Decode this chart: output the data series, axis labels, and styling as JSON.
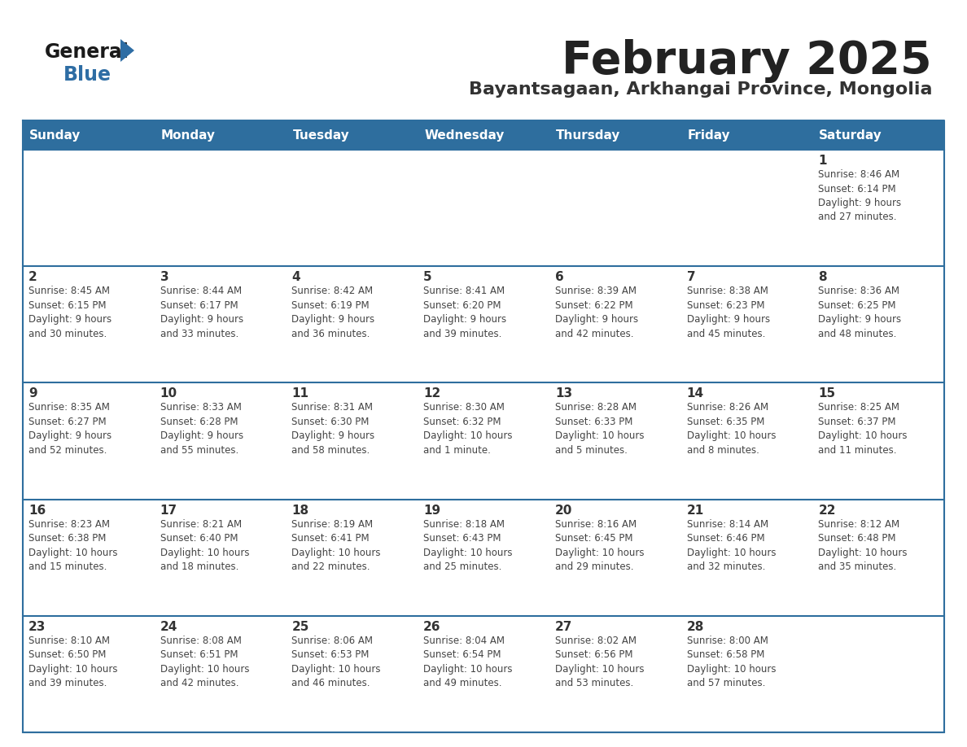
{
  "title": "February 2025",
  "subtitle": "Bayantsagaan, Arkhangai Province, Mongolia",
  "days_of_week": [
    "Sunday",
    "Monday",
    "Tuesday",
    "Wednesday",
    "Thursday",
    "Friday",
    "Saturday"
  ],
  "header_bg": "#2E6E9E",
  "header_text": "#FFFFFF",
  "cell_bg": "#FFFFFF",
  "cell_border": "#2E6E9E",
  "row_separator": "#2E6E9E",
  "text_color": "#444444",
  "day_num_color": "#333333",
  "logo_general_color": "#1a1a1a",
  "logo_blue_color": "#2E6DA4",
  "calendar": [
    [
      null,
      null,
      null,
      null,
      null,
      null,
      {
        "day": 1,
        "sunrise": "8:46 AM",
        "sunset": "6:14 PM",
        "daylight": "9 hours\nand 27 minutes."
      }
    ],
    [
      {
        "day": 2,
        "sunrise": "8:45 AM",
        "sunset": "6:15 PM",
        "daylight": "9 hours\nand 30 minutes."
      },
      {
        "day": 3,
        "sunrise": "8:44 AM",
        "sunset": "6:17 PM",
        "daylight": "9 hours\nand 33 minutes."
      },
      {
        "day": 4,
        "sunrise": "8:42 AM",
        "sunset": "6:19 PM",
        "daylight": "9 hours\nand 36 minutes."
      },
      {
        "day": 5,
        "sunrise": "8:41 AM",
        "sunset": "6:20 PM",
        "daylight": "9 hours\nand 39 minutes."
      },
      {
        "day": 6,
        "sunrise": "8:39 AM",
        "sunset": "6:22 PM",
        "daylight": "9 hours\nand 42 minutes."
      },
      {
        "day": 7,
        "sunrise": "8:38 AM",
        "sunset": "6:23 PM",
        "daylight": "9 hours\nand 45 minutes."
      },
      {
        "day": 8,
        "sunrise": "8:36 AM",
        "sunset": "6:25 PM",
        "daylight": "9 hours\nand 48 minutes."
      }
    ],
    [
      {
        "day": 9,
        "sunrise": "8:35 AM",
        "sunset": "6:27 PM",
        "daylight": "9 hours\nand 52 minutes."
      },
      {
        "day": 10,
        "sunrise": "8:33 AM",
        "sunset": "6:28 PM",
        "daylight": "9 hours\nand 55 minutes."
      },
      {
        "day": 11,
        "sunrise": "8:31 AM",
        "sunset": "6:30 PM",
        "daylight": "9 hours\nand 58 minutes."
      },
      {
        "day": 12,
        "sunrise": "8:30 AM",
        "sunset": "6:32 PM",
        "daylight": "10 hours\nand 1 minute."
      },
      {
        "day": 13,
        "sunrise": "8:28 AM",
        "sunset": "6:33 PM",
        "daylight": "10 hours\nand 5 minutes."
      },
      {
        "day": 14,
        "sunrise": "8:26 AM",
        "sunset": "6:35 PM",
        "daylight": "10 hours\nand 8 minutes."
      },
      {
        "day": 15,
        "sunrise": "8:25 AM",
        "sunset": "6:37 PM",
        "daylight": "10 hours\nand 11 minutes."
      }
    ],
    [
      {
        "day": 16,
        "sunrise": "8:23 AM",
        "sunset": "6:38 PM",
        "daylight": "10 hours\nand 15 minutes."
      },
      {
        "day": 17,
        "sunrise": "8:21 AM",
        "sunset": "6:40 PM",
        "daylight": "10 hours\nand 18 minutes."
      },
      {
        "day": 18,
        "sunrise": "8:19 AM",
        "sunset": "6:41 PM",
        "daylight": "10 hours\nand 22 minutes."
      },
      {
        "day": 19,
        "sunrise": "8:18 AM",
        "sunset": "6:43 PM",
        "daylight": "10 hours\nand 25 minutes."
      },
      {
        "day": 20,
        "sunrise": "8:16 AM",
        "sunset": "6:45 PM",
        "daylight": "10 hours\nand 29 minutes."
      },
      {
        "day": 21,
        "sunrise": "8:14 AM",
        "sunset": "6:46 PM",
        "daylight": "10 hours\nand 32 minutes."
      },
      {
        "day": 22,
        "sunrise": "8:12 AM",
        "sunset": "6:48 PM",
        "daylight": "10 hours\nand 35 minutes."
      }
    ],
    [
      {
        "day": 23,
        "sunrise": "8:10 AM",
        "sunset": "6:50 PM",
        "daylight": "10 hours\nand 39 minutes."
      },
      {
        "day": 24,
        "sunrise": "8:08 AM",
        "sunset": "6:51 PM",
        "daylight": "10 hours\nand 42 minutes."
      },
      {
        "day": 25,
        "sunrise": "8:06 AM",
        "sunset": "6:53 PM",
        "daylight": "10 hours\nand 46 minutes."
      },
      {
        "day": 26,
        "sunrise": "8:04 AM",
        "sunset": "6:54 PM",
        "daylight": "10 hours\nand 49 minutes."
      },
      {
        "day": 27,
        "sunrise": "8:02 AM",
        "sunset": "6:56 PM",
        "daylight": "10 hours\nand 53 minutes."
      },
      {
        "day": 28,
        "sunrise": "8:00 AM",
        "sunset": "6:58 PM",
        "daylight": "10 hours\nand 57 minutes."
      },
      null
    ]
  ]
}
